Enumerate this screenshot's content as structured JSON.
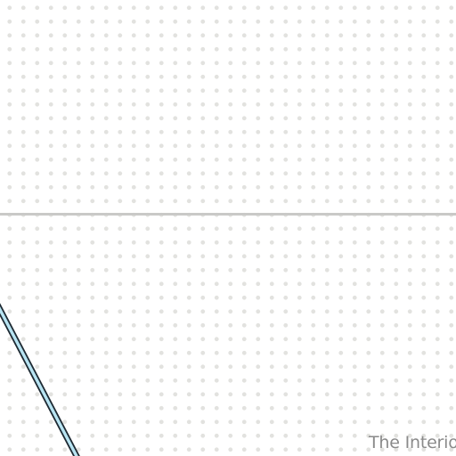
{
  "canvas": {
    "background": "#ffffff",
    "dot_color": "#e2e2df",
    "grid_visible": true
  },
  "divider": {
    "color": "#c9c9c7"
  },
  "wall": {
    "stroke_color": "#1e2a33",
    "fill_color": "#b8e4f2"
  },
  "room": {
    "label": "The Interio"
  }
}
